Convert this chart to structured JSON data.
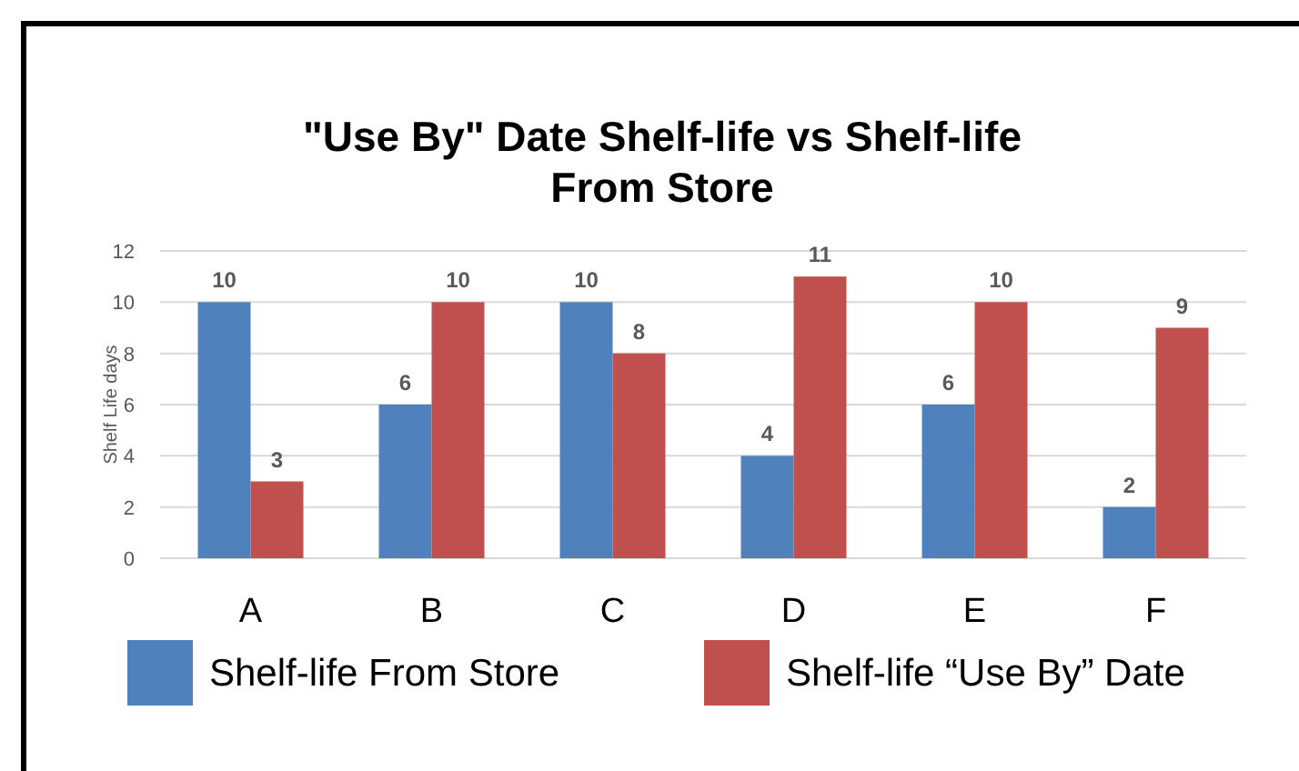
{
  "chart_data": {
    "type": "bar",
    "title": "\"Use By\" Date Shelf-life vs Shelf-life From Store",
    "ylabel": "Shelf Life days",
    "categories": [
      "A",
      "B",
      "C",
      "D",
      "E",
      "F"
    ],
    "series": [
      {
        "name": "Shelf-life From Store",
        "color": "#4f81bd",
        "values": [
          10,
          6,
          10,
          4,
          6,
          2
        ]
      },
      {
        "name": "Shelf-life “Use By” Date",
        "color": "#c0504d",
        "values": [
          3,
          10,
          8,
          11,
          10,
          9
        ]
      }
    ],
    "ylim": [
      0,
      12
    ],
    "yticks": [
      0,
      2,
      4,
      6,
      8,
      10,
      12
    ],
    "grid": "y",
    "legend": "bottom",
    "data_labels": true
  }
}
